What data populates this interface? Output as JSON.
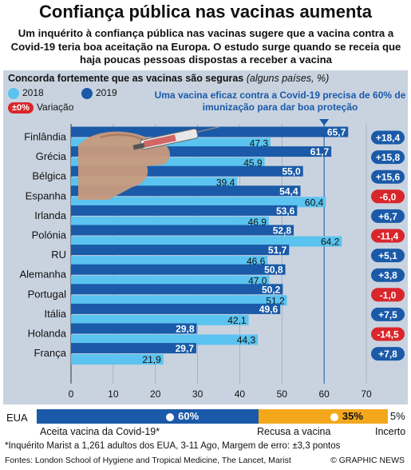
{
  "title": "Confiança pública nas vacinas aumenta",
  "subtitle": "Um inquérito à confiança pública nas vacinas sugere que a vacina contra a Covid-19 teria boa aceitação na Europa. O estudo surge quando se receia que haja poucas pessoas dispostas a receber a vacina",
  "chart_title": "Concorda fortemente que as vacinas são seguras",
  "chart_subtitle": "(alguns países, %)",
  "legend": {
    "y2018": "2018",
    "y2019": "2019",
    "variation_pill": "±0%",
    "variation": "Variação"
  },
  "note": "Uma vacina eficaz contra a Covid-19 precisa de 60% de imunização para dar boa proteção",
  "colors": {
    "y2018": "#5bc3ef",
    "y2019": "#1a5aa8",
    "positive": "#1a5aa8",
    "negative": "#d9262b",
    "accept": "#1a5aa8",
    "refuse": "#f3a81c",
    "uncertain": "#ffffff"
  },
  "chart_data": {
    "type": "bar",
    "orientation": "horizontal",
    "categories": [
      "Finlândia",
      "Grécia",
      "Bélgica",
      "Espanha",
      "Irlanda",
      "Polónia",
      "RU",
      "Alemanha",
      "Portugal",
      "Itália",
      "Holanda",
      "França"
    ],
    "series": [
      {
        "name": "2018",
        "values": [
          47.3,
          45.9,
          39.4,
          60.4,
          46.9,
          64.2,
          46.6,
          47.0,
          51.2,
          42.1,
          44.3,
          21.9
        ]
      },
      {
        "name": "2019",
        "values": [
          65.7,
          61.7,
          55.0,
          54.4,
          53.6,
          52.8,
          51.7,
          50.8,
          50.2,
          49.6,
          29.8,
          29.7
        ]
      }
    ],
    "value_labels_2018": [
      "47,3",
      "45,9",
      "39,4",
      "60,4",
      "46,9",
      "64,2",
      "46,6",
      "47,0",
      "51,2",
      "42,1",
      "44,3",
      "21,9"
    ],
    "value_labels_2019": [
      "65,7",
      "61,7",
      "55,0",
      "54,4",
      "53,6",
      "52,8",
      "51,7",
      "50,8",
      "50,2",
      "49,6",
      "29,8",
      "29,7"
    ],
    "variation": [
      18.4,
      15.8,
      15.6,
      -6.0,
      6.7,
      -11.4,
      5.1,
      3.8,
      -1.0,
      7.5,
      -14.5,
      7.8
    ],
    "variation_labels": [
      "+18,4",
      "+15,8",
      "+15,6",
      "-6,0",
      "+6,7",
      "-11,4",
      "+5,1",
      "+3,8",
      "-1,0",
      "+7,5",
      "-14,5",
      "+7,8"
    ],
    "xlim": [
      0,
      70
    ],
    "xticks": [
      0,
      10,
      20,
      30,
      40,
      50,
      60,
      70
    ],
    "reference_line": 60
  },
  "eua": {
    "label": "EUA",
    "accept_value": 60,
    "refuse_value": 35,
    "uncertain_value": 5,
    "accept_label": "60%",
    "refuse_label": "35%",
    "uncertain_label": "5%",
    "accept_caption": "Aceita vacina da Covid-19*",
    "refuse_caption": "Recusa a vacina",
    "uncertain_caption": "Incerto"
  },
  "footnote": "*Inquérito Marist a 1,261 adultos dos EUA, 3-11 Ago, Margem de erro: ±3,3 pontos",
  "sources": "Fontes: London School of Hygiene and Tropical Medicine, The Lancet, Marist",
  "credit": "© GRAPHIC NEWS"
}
